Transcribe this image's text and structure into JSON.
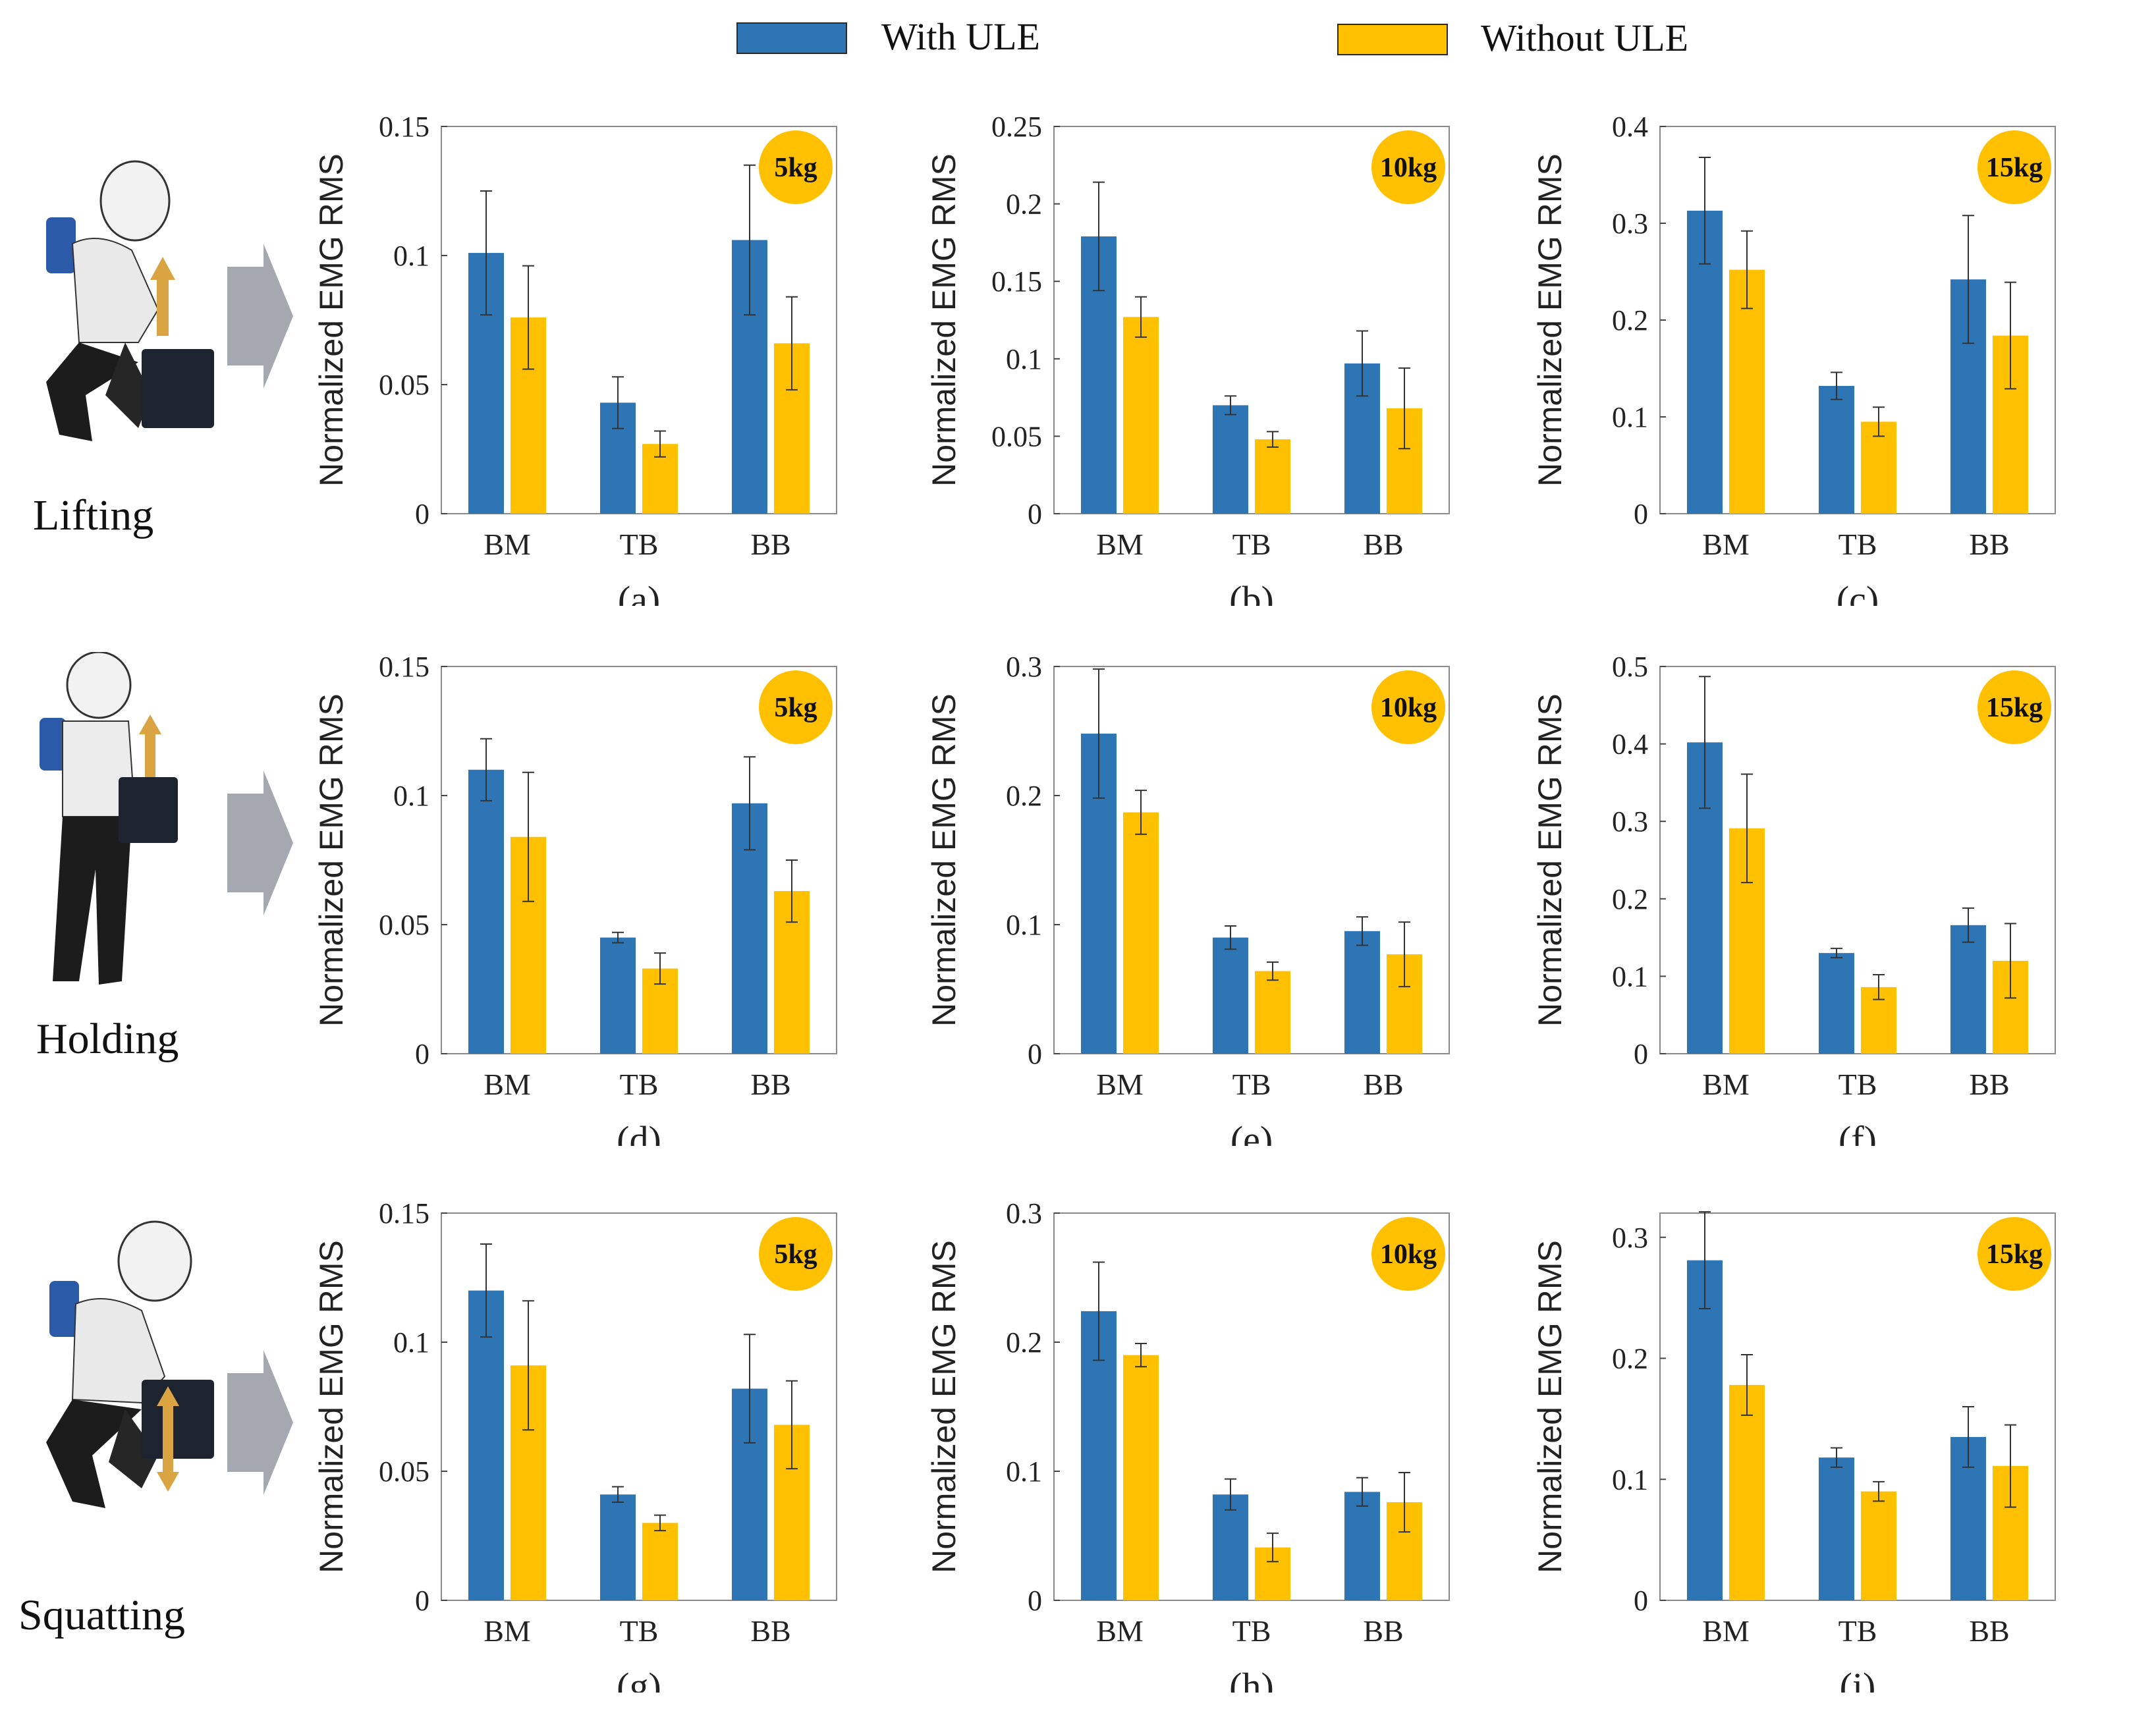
{
  "legend": {
    "with_label": "With ULE",
    "without_label": "Without  ULE",
    "with_color": "#2E75B6",
    "without_color": "#FFC000"
  },
  "badge_color": "#FFC000",
  "rows": [
    {
      "label": "Lifting",
      "arrow": "up",
      "pose": "lifting-person"
    },
    {
      "label": "Holding",
      "arrow": "up",
      "pose": "holding-person"
    },
    {
      "label": "Squatting",
      "arrow": "updown",
      "pose": "squatting-person"
    }
  ],
  "chart_data": [
    {
      "id": "a",
      "type": "bar",
      "caption": "(a)",
      "badge": "5kg",
      "ylabel": "Normalized EMG RMS",
      "categories": [
        "BM",
        "TB",
        "BB"
      ],
      "ylim": [
        0,
        0.15
      ],
      "yticks": [
        0,
        0.05,
        0.1,
        0.15
      ],
      "yticklabels": [
        "0",
        "0.05",
        "0.1",
        "0.15"
      ],
      "series": [
        {
          "name": "With ULE",
          "values": [
            0.101,
            0.043,
            0.106
          ],
          "errors": [
            0.024,
            0.01,
            0.029
          ]
        },
        {
          "name": "Without  ULE",
          "values": [
            0.076,
            0.027,
            0.066
          ],
          "errors": [
            0.02,
            0.005,
            0.018
          ]
        }
      ]
    },
    {
      "id": "b",
      "type": "bar",
      "caption": "(b)",
      "badge": "10kg",
      "ylabel": "Normalized EMG RMS",
      "categories": [
        "BM",
        "TB",
        "BB"
      ],
      "ylim": [
        0,
        0.25
      ],
      "yticks": [
        0,
        0.05,
        0.1,
        0.15,
        0.2,
        0.25
      ],
      "yticklabels": [
        "0",
        "0.05",
        "0.1",
        "0.15",
        "0.2",
        "0.25"
      ],
      "series": [
        {
          "name": "With ULE",
          "values": [
            0.179,
            0.07,
            0.097
          ],
          "errors": [
            0.035,
            0.006,
            0.021
          ]
        },
        {
          "name": "Without  ULE",
          "values": [
            0.127,
            0.048,
            0.068
          ],
          "errors": [
            0.013,
            0.005,
            0.026
          ]
        }
      ]
    },
    {
      "id": "c",
      "type": "bar",
      "caption": "(c)",
      "badge": "15kg",
      "ylabel": "Normalized EMG RMS",
      "categories": [
        "BM",
        "TB",
        "BB"
      ],
      "ylim": [
        0,
        0.4
      ],
      "yticks": [
        0,
        0.1,
        0.2,
        0.3,
        0.4
      ],
      "yticklabels": [
        "0",
        "0.1",
        "0.2",
        "0.3",
        "0.4"
      ],
      "series": [
        {
          "name": "With ULE",
          "values": [
            0.313,
            0.132,
            0.242
          ],
          "errors": [
            0.055,
            0.014,
            0.066
          ]
        },
        {
          "name": "Without  ULE",
          "values": [
            0.252,
            0.095,
            0.184
          ],
          "errors": [
            0.04,
            0.015,
            0.055
          ]
        }
      ]
    },
    {
      "id": "d",
      "type": "bar",
      "caption": "(d)",
      "badge": "5kg",
      "ylabel": "Normalized EMG RMS",
      "categories": [
        "BM",
        "TB",
        "BB"
      ],
      "ylim": [
        0,
        0.15
      ],
      "yticks": [
        0,
        0.05,
        0.1,
        0.15
      ],
      "yticklabels": [
        "0",
        "0.05",
        "0.1",
        "0.15"
      ],
      "series": [
        {
          "name": "With ULE",
          "values": [
            0.11,
            0.045,
            0.097
          ],
          "errors": [
            0.012,
            0.002,
            0.018
          ]
        },
        {
          "name": "Without  ULE",
          "values": [
            0.084,
            0.033,
            0.063
          ],
          "errors": [
            0.025,
            0.006,
            0.012
          ]
        }
      ]
    },
    {
      "id": "e",
      "type": "bar",
      "caption": "(e)",
      "badge": "10kg",
      "ylabel": "Normalized EMG RMS",
      "categories": [
        "BM",
        "TB",
        "BB"
      ],
      "ylim": [
        0,
        0.3
      ],
      "yticks": [
        0,
        0.1,
        0.2,
        0.3
      ],
      "yticklabels": [
        "0",
        "0.1",
        "0.2",
        "0.3"
      ],
      "series": [
        {
          "name": "With ULE",
          "values": [
            0.248,
            0.09,
            0.095
          ],
          "errors": [
            0.05,
            0.009,
            0.011
          ]
        },
        {
          "name": "Without  ULE",
          "values": [
            0.187,
            0.064,
            0.077
          ],
          "errors": [
            0.017,
            0.007,
            0.025
          ]
        }
      ]
    },
    {
      "id": "f",
      "type": "bar",
      "caption": "(f)",
      "badge": "15kg",
      "ylabel": "Normalized EMG RMS",
      "categories": [
        "BM",
        "TB",
        "BB"
      ],
      "ylim": [
        0,
        0.5
      ],
      "yticks": [
        0,
        0.1,
        0.2,
        0.3,
        0.4,
        0.5
      ],
      "yticklabels": [
        "0",
        "0.1",
        "0.2",
        "0.3",
        "0.4",
        "0.5"
      ],
      "series": [
        {
          "name": "With ULE",
          "values": [
            0.402,
            0.13,
            0.166
          ],
          "errors": [
            0.085,
            0.006,
            0.022
          ]
        },
        {
          "name": "Without  ULE",
          "values": [
            0.291,
            0.086,
            0.12
          ],
          "errors": [
            0.07,
            0.016,
            0.048
          ]
        }
      ]
    },
    {
      "id": "g",
      "type": "bar",
      "caption": "(g)",
      "badge": "5kg",
      "ylabel": "Normalized EMG RMS",
      "categories": [
        "BM",
        "TB",
        "BB"
      ],
      "ylim": [
        0,
        0.15
      ],
      "yticks": [
        0,
        0.05,
        0.1,
        0.15
      ],
      "yticklabels": [
        "0",
        "0.05",
        "0.1",
        "0.15"
      ],
      "series": [
        {
          "name": "With ULE",
          "values": [
            0.12,
            0.041,
            0.082
          ],
          "errors": [
            0.018,
            0.003,
            0.021
          ]
        },
        {
          "name": "Without  ULE",
          "values": [
            0.091,
            0.03,
            0.068
          ],
          "errors": [
            0.025,
            0.003,
            0.017
          ]
        }
      ]
    },
    {
      "id": "h",
      "type": "bar",
      "caption": "(h)",
      "badge": "10kg",
      "ylabel": "Normalized EMG RMS",
      "categories": [
        "BM",
        "TB",
        "BB"
      ],
      "ylim": [
        0,
        0.3
      ],
      "yticks": [
        0,
        0.1,
        0.2,
        0.3
      ],
      "yticklabels": [
        "0",
        "0.1",
        "0.2",
        "0.3"
      ],
      "series": [
        {
          "name": "With ULE",
          "values": [
            0.224,
            0.082,
            0.084
          ],
          "errors": [
            0.038,
            0.012,
            0.011
          ]
        },
        {
          "name": "Without  ULE",
          "values": [
            0.19,
            0.041,
            0.076
          ],
          "errors": [
            0.009,
            0.011,
            0.023
          ]
        }
      ]
    },
    {
      "id": "i",
      "type": "bar",
      "caption": "(i)",
      "badge": "15kg",
      "ylabel": "Normalized EMG RMS",
      "categories": [
        "BM",
        "TB",
        "BB"
      ],
      "ylim": [
        0,
        0.32
      ],
      "yticks": [
        0,
        0.1,
        0.2,
        0.3
      ],
      "yticklabels": [
        "0",
        "0.1",
        "0.2",
        "0.3"
      ],
      "series": [
        {
          "name": "With ULE",
          "values": [
            0.281,
            0.118,
            0.135
          ],
          "errors": [
            0.04,
            0.008,
            0.025
          ]
        },
        {
          "name": "Without  ULE",
          "values": [
            0.178,
            0.09,
            0.111
          ],
          "errors": [
            0.025,
            0.008,
            0.034
          ]
        }
      ]
    }
  ]
}
